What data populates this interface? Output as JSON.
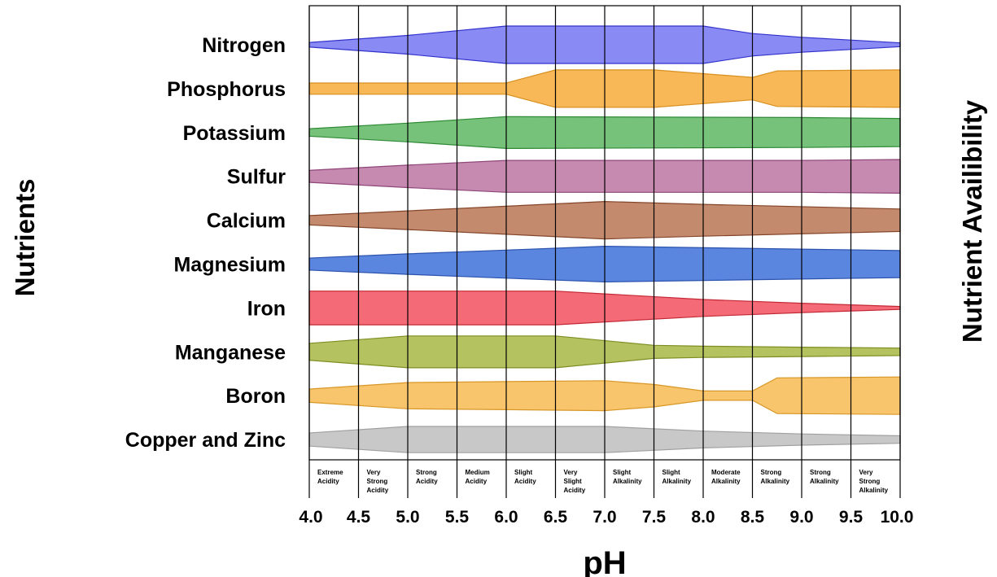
{
  "chart_data": {
    "type": "area",
    "xlabel": "pH",
    "ylabel_left": "Nutrients",
    "ylabel_right": "Nutrient Availibility",
    "xlim": [
      4.0,
      10.0
    ],
    "x_ticks": [
      "4.0",
      "4.5",
      "5.0",
      "5.5",
      "6.0",
      "6.5",
      "7.0",
      "7.5",
      "8.0",
      "8.5",
      "9.0",
      "9.5",
      "10.0"
    ],
    "grid": true,
    "ranges": [
      {
        "from": 4.0,
        "to": 4.5,
        "lines": [
          "Extreme",
          "Acidity"
        ]
      },
      {
        "from": 4.5,
        "to": 5.0,
        "lines": [
          "Very",
          "Strong",
          "Acidity"
        ]
      },
      {
        "from": 5.0,
        "to": 5.5,
        "lines": [
          "Strong",
          "Acidity"
        ]
      },
      {
        "from": 5.5,
        "to": 6.0,
        "lines": [
          "Medium",
          "Acidity"
        ]
      },
      {
        "from": 6.0,
        "to": 6.5,
        "lines": [
          "Slight",
          "Acidity"
        ]
      },
      {
        "from": 6.5,
        "to": 7.0,
        "lines": [
          "Very",
          "Slight",
          "Acidity"
        ]
      },
      {
        "from": 7.0,
        "to": 7.5,
        "lines": [
          "Slight",
          "Alkalinity"
        ]
      },
      {
        "from": 7.5,
        "to": 8.0,
        "lines": [
          "Slight",
          "Alkalinity"
        ]
      },
      {
        "from": 8.0,
        "to": 8.5,
        "lines": [
          "Moderate",
          "Alkalinity"
        ]
      },
      {
        "from": 8.5,
        "to": 9.0,
        "lines": [
          "Strong",
          "Alkalinity"
        ]
      },
      {
        "from": 9.0,
        "to": 9.5,
        "lines": [
          "Strong",
          "Alkalinity"
        ]
      },
      {
        "from": 9.5,
        "to": 10.0,
        "lines": [
          "Very",
          "Strong",
          "Alkalinity"
        ]
      }
    ],
    "series": [
      {
        "name": "Nitrogen",
        "color": "#8a8af5",
        "stroke": "#3333cc",
        "points": [
          [
            4.0,
            0.12
          ],
          [
            5.0,
            0.5
          ],
          [
            6.0,
            1.0
          ],
          [
            8.0,
            1.0
          ],
          [
            8.5,
            0.6
          ],
          [
            9.0,
            0.4
          ],
          [
            10.0,
            0.1
          ]
        ]
      },
      {
        "name": "Phosphorus",
        "color": "#f8b858",
        "stroke": "#d89020",
        "points": [
          [
            4.0,
            0.3
          ],
          [
            6.0,
            0.3
          ],
          [
            6.5,
            1.0
          ],
          [
            7.5,
            1.0
          ],
          [
            8.5,
            0.6
          ],
          [
            8.75,
            0.95
          ],
          [
            10.0,
            1.0
          ]
        ]
      },
      {
        "name": "Potassium",
        "color": "#77c27a",
        "stroke": "#2f8a36",
        "points": [
          [
            4.0,
            0.2
          ],
          [
            5.0,
            0.5
          ],
          [
            6.0,
            0.85
          ],
          [
            9.0,
            0.8
          ],
          [
            10.0,
            0.75
          ]
        ]
      },
      {
        "name": "Sulfur",
        "color": "#c689b0",
        "stroke": "#8e4678",
        "points": [
          [
            4.0,
            0.32
          ],
          [
            5.0,
            0.6
          ],
          [
            6.0,
            0.85
          ],
          [
            9.0,
            0.85
          ],
          [
            10.0,
            0.9
          ]
        ]
      },
      {
        "name": "Calcium",
        "color": "#c48a6e",
        "stroke": "#84462a",
        "points": [
          [
            4.0,
            0.25
          ],
          [
            5.0,
            0.5
          ],
          [
            6.0,
            0.75
          ],
          [
            7.0,
            1.0
          ],
          [
            8.0,
            0.85
          ],
          [
            10.0,
            0.6
          ]
        ]
      },
      {
        "name": "Magnesium",
        "color": "#5b86e0",
        "stroke": "#2b52ad",
        "points": [
          [
            4.0,
            0.32
          ],
          [
            5.0,
            0.55
          ],
          [
            6.0,
            0.75
          ],
          [
            7.0,
            0.95
          ],
          [
            10.0,
            0.72
          ]
        ]
      },
      {
        "name": "Iron",
        "color": "#f46a76",
        "stroke": "#c42a36",
        "points": [
          [
            4.0,
            0.9
          ],
          [
            6.5,
            0.9
          ],
          [
            7.0,
            0.75
          ],
          [
            8.0,
            0.45
          ],
          [
            9.0,
            0.25
          ],
          [
            10.0,
            0.08
          ]
        ]
      },
      {
        "name": "Manganese",
        "color": "#b4c260",
        "stroke": "#7f8e22",
        "points": [
          [
            4.0,
            0.45
          ],
          [
            5.0,
            0.85
          ],
          [
            6.5,
            0.85
          ],
          [
            7.5,
            0.35
          ],
          [
            8.0,
            0.3
          ],
          [
            9.0,
            0.25
          ],
          [
            10.0,
            0.2
          ]
        ]
      },
      {
        "name": "Boron",
        "color": "#f8c46c",
        "stroke": "#d89828",
        "points": [
          [
            4.0,
            0.35
          ],
          [
            5.0,
            0.7
          ],
          [
            6.0,
            0.75
          ],
          [
            7.0,
            0.8
          ],
          [
            7.5,
            0.6
          ],
          [
            8.0,
            0.25
          ],
          [
            8.5,
            0.25
          ],
          [
            8.75,
            0.95
          ],
          [
            10.0,
            1.0
          ]
        ]
      },
      {
        "name": "Copper and Zinc",
        "color": "#c8c8c8",
        "stroke": "#a0a0a0",
        "points": [
          [
            4.0,
            0.35
          ],
          [
            5.0,
            0.7
          ],
          [
            7.0,
            0.7
          ],
          [
            8.0,
            0.45
          ],
          [
            9.0,
            0.3
          ],
          [
            10.0,
            0.2
          ]
        ]
      }
    ]
  }
}
